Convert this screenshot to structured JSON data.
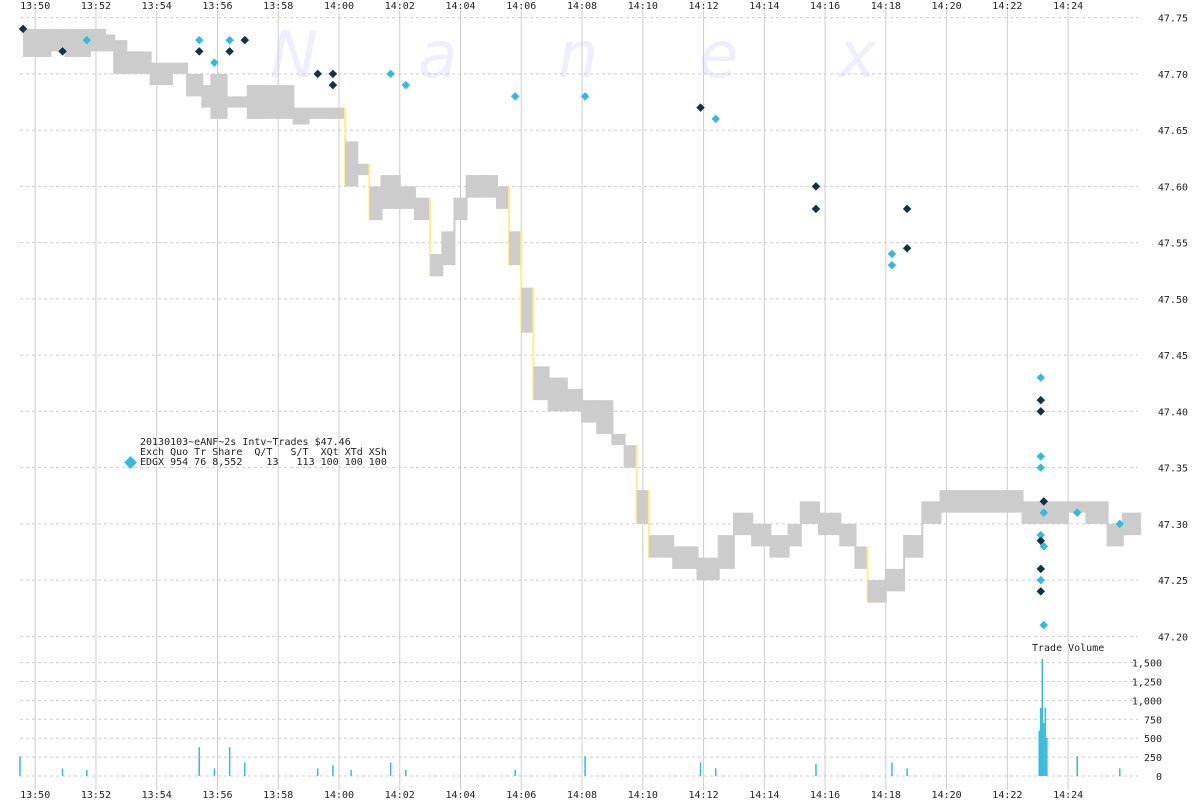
{
  "chart_data": {
    "type": "scatter",
    "title": "20130103~eANF~2s Intv~Trades $47.46",
    "watermark": "N a n e x",
    "legend": {
      "header": "Exch Quo Tr Share  Q/T   S/T  XQt XTd XSh",
      "row": "EDGX 954 76 8,552    13   113 100 100 100",
      "marker_color": "#33bbdd"
    },
    "volume_label": "Trade Volume",
    "x_ticks": [
      "13:50",
      "13:52",
      "13:54",
      "13:56",
      "13:58",
      "14:00",
      "14:02",
      "14:04",
      "14:06",
      "14:08",
      "14:10",
      "14:12",
      "14:14",
      "14:16",
      "14:18",
      "14:20",
      "14:22",
      "14:24"
    ],
    "x_range_minutes": [
      -0.5,
      36.3
    ],
    "price_axis": {
      "ticks": [
        "47.75",
        "47.70",
        "47.65",
        "47.60",
        "47.55",
        "47.50",
        "47.45",
        "47.40",
        "47.35",
        "47.30",
        "47.25",
        "47.20"
      ],
      "range": [
        47.195,
        47.755
      ]
    },
    "volume_axis": {
      "ticks": [
        "1,500",
        "1,250",
        "1,000",
        "750",
        "500",
        "250",
        "0"
      ],
      "range": [
        0,
        1600
      ]
    },
    "colors": {
      "nbbo_band": "#cccccc",
      "edgx_marker": "#33bbdd",
      "other_marker": "#113344",
      "grid": "#cccccc",
      "volume_bar": "#33bbdd",
      "trade_up": "#ffee88",
      "trade_down": "#dd6666"
    },
    "nbbo_series": [
      {
        "t": -0.4,
        "lo": 47.715,
        "hi": 47.74
      },
      {
        "t": 0.5,
        "lo": 47.72,
        "hi": 47.74
      },
      {
        "t": 1.0,
        "lo": 47.715,
        "hi": 47.74
      },
      {
        "t": 1.8,
        "lo": 47.72,
        "hi": 47.74
      },
      {
        "t": 2.3,
        "lo": 47.72,
        "hi": 47.735
      },
      {
        "t": 2.6,
        "lo": 47.7,
        "hi": 47.73
      },
      {
        "t": 3.0,
        "lo": 47.7,
        "hi": 47.72
      },
      {
        "t": 3.8,
        "lo": 47.69,
        "hi": 47.71
      },
      {
        "t": 4.5,
        "lo": 47.7,
        "hi": 47.71
      },
      {
        "t": 5.0,
        "lo": 47.68,
        "hi": 47.7
      },
      {
        "t": 5.5,
        "lo": 47.67,
        "hi": 47.69
      },
      {
        "t": 5.8,
        "lo": 47.66,
        "hi": 47.7
      },
      {
        "t": 6.3,
        "lo": 47.67,
        "hi": 47.68
      },
      {
        "t": 7.0,
        "lo": 47.66,
        "hi": 47.69
      },
      {
        "t": 7.5,
        "lo": 47.66,
        "hi": 47.69
      },
      {
        "t": 8.5,
        "lo": 47.655,
        "hi": 47.67
      },
      {
        "t": 9.0,
        "lo": 47.66,
        "hi": 47.67
      },
      {
        "t": 9.9,
        "lo": 47.66,
        "hi": 47.67
      },
      {
        "t": 10.2,
        "lo": 47.6,
        "hi": 47.64
      },
      {
        "t": 10.6,
        "lo": 47.61,
        "hi": 47.62
      },
      {
        "t": 11.0,
        "lo": 47.57,
        "hi": 47.6
      },
      {
        "t": 11.4,
        "lo": 47.58,
        "hi": 47.61
      },
      {
        "t": 12.0,
        "lo": 47.58,
        "hi": 47.6
      },
      {
        "t": 12.5,
        "lo": 47.57,
        "hi": 47.59
      },
      {
        "t": 13.0,
        "lo": 47.52,
        "hi": 47.54
      },
      {
        "t": 13.4,
        "lo": 47.53,
        "hi": 47.56
      },
      {
        "t": 13.8,
        "lo": 47.57,
        "hi": 47.59
      },
      {
        "t": 14.2,
        "lo": 47.59,
        "hi": 47.61
      },
      {
        "t": 14.8,
        "lo": 47.59,
        "hi": 47.61
      },
      {
        "t": 15.2,
        "lo": 47.58,
        "hi": 47.6
      },
      {
        "t": 15.6,
        "lo": 47.53,
        "hi": 47.56
      },
      {
        "t": 16.0,
        "lo": 47.47,
        "hi": 47.51
      },
      {
        "t": 16.4,
        "lo": 47.41,
        "hi": 47.44
      },
      {
        "t": 16.9,
        "lo": 47.4,
        "hi": 47.43
      },
      {
        "t": 17.5,
        "lo": 47.4,
        "hi": 47.42
      },
      {
        "t": 18.0,
        "lo": 47.39,
        "hi": 47.41
      },
      {
        "t": 18.5,
        "lo": 47.38,
        "hi": 47.41
      },
      {
        "t": 19.0,
        "lo": 47.37,
        "hi": 47.38
      },
      {
        "t": 19.4,
        "lo": 47.35,
        "hi": 47.37
      },
      {
        "t": 19.8,
        "lo": 47.3,
        "hi": 47.33
      },
      {
        "t": 20.2,
        "lo": 47.27,
        "hi": 47.29
      },
      {
        "t": 21.0,
        "lo": 47.26,
        "hi": 47.28
      },
      {
        "t": 21.8,
        "lo": 47.25,
        "hi": 47.27
      },
      {
        "t": 22.5,
        "lo": 47.26,
        "hi": 47.29
      },
      {
        "t": 23.0,
        "lo": 47.29,
        "hi": 47.31
      },
      {
        "t": 23.6,
        "lo": 47.28,
        "hi": 47.3
      },
      {
        "t": 24.2,
        "lo": 47.27,
        "hi": 47.29
      },
      {
        "t": 24.8,
        "lo": 47.28,
        "hi": 47.3
      },
      {
        "t": 25.2,
        "lo": 47.3,
        "hi": 47.32
      },
      {
        "t": 25.8,
        "lo": 47.29,
        "hi": 47.31
      },
      {
        "t": 26.5,
        "lo": 47.28,
        "hi": 47.3
      },
      {
        "t": 27.0,
        "lo": 47.26,
        "hi": 47.28
      },
      {
        "t": 27.4,
        "lo": 47.23,
        "hi": 47.25
      },
      {
        "t": 28.0,
        "lo": 47.24,
        "hi": 47.26
      },
      {
        "t": 28.6,
        "lo": 47.27,
        "hi": 47.29
      },
      {
        "t": 29.2,
        "lo": 47.3,
        "hi": 47.32
      },
      {
        "t": 29.8,
        "lo": 47.31,
        "hi": 47.33
      },
      {
        "t": 30.5,
        "lo": 47.31,
        "hi": 47.33
      },
      {
        "t": 31.5,
        "lo": 47.31,
        "hi": 47.33
      },
      {
        "t": 32.5,
        "lo": 47.3,
        "hi": 47.32
      },
      {
        "t": 33.3,
        "lo": 47.3,
        "hi": 47.32
      },
      {
        "t": 34.0,
        "lo": 47.31,
        "hi": 47.32
      },
      {
        "t": 34.6,
        "lo": 47.3,
        "hi": 47.32
      },
      {
        "t": 35.3,
        "lo": 47.28,
        "hi": 47.3
      },
      {
        "t": 35.8,
        "lo": 47.29,
        "hi": 47.31
      }
    ],
    "trades": [
      {
        "t": -0.4,
        "p": 47.74,
        "exch": "other"
      },
      {
        "t": 0.9,
        "p": 47.72,
        "exch": "other"
      },
      {
        "t": 1.7,
        "p": 47.73,
        "exch": "EDGX"
      },
      {
        "t": 5.4,
        "p": 47.73,
        "exch": "EDGX"
      },
      {
        "t": 5.4,
        "p": 47.72,
        "exch": "other"
      },
      {
        "t": 5.9,
        "p": 47.71,
        "exch": "EDGX"
      },
      {
        "t": 6.4,
        "p": 47.73,
        "exch": "EDGX"
      },
      {
        "t": 6.4,
        "p": 47.72,
        "exch": "other"
      },
      {
        "t": 6.9,
        "p": 47.73,
        "exch": "other"
      },
      {
        "t": 9.3,
        "p": 47.7,
        "exch": "other"
      },
      {
        "t": 9.8,
        "p": 47.7,
        "exch": "other"
      },
      {
        "t": 9.8,
        "p": 47.69,
        "exch": "other"
      },
      {
        "t": 11.7,
        "p": 47.7,
        "exch": "EDGX"
      },
      {
        "t": 12.2,
        "p": 47.69,
        "exch": "EDGX"
      },
      {
        "t": 15.8,
        "p": 47.68,
        "exch": "EDGX"
      },
      {
        "t": 18.1,
        "p": 47.68,
        "exch": "EDGX"
      },
      {
        "t": 21.9,
        "p": 47.67,
        "exch": "other"
      },
      {
        "t": 22.4,
        "p": 47.66,
        "exch": "EDGX"
      },
      {
        "t": 25.7,
        "p": 47.6,
        "exch": "other"
      },
      {
        "t": 25.7,
        "p": 47.58,
        "exch": "other"
      },
      {
        "t": 28.2,
        "p": 47.54,
        "exch": "EDGX"
      },
      {
        "t": 28.2,
        "p": 47.53,
        "exch": "EDGX"
      },
      {
        "t": 28.7,
        "p": 47.545,
        "exch": "other"
      },
      {
        "t": 28.7,
        "p": 47.58,
        "exch": "other"
      },
      {
        "t": 33.1,
        "p": 47.43,
        "exch": "EDGX"
      },
      {
        "t": 33.1,
        "p": 47.41,
        "exch": "other"
      },
      {
        "t": 33.1,
        "p": 47.4,
        "exch": "other"
      },
      {
        "t": 33.1,
        "p": 47.36,
        "exch": "EDGX"
      },
      {
        "t": 33.1,
        "p": 47.35,
        "exch": "EDGX"
      },
      {
        "t": 33.2,
        "p": 47.32,
        "exch": "other"
      },
      {
        "t": 33.2,
        "p": 47.31,
        "exch": "EDGX"
      },
      {
        "t": 33.1,
        "p": 47.29,
        "exch": "EDGX"
      },
      {
        "t": 33.1,
        "p": 47.285,
        "exch": "other"
      },
      {
        "t": 33.2,
        "p": 47.28,
        "exch": "EDGX"
      },
      {
        "t": 33.1,
        "p": 47.26,
        "exch": "other"
      },
      {
        "t": 33.1,
        "p": 47.25,
        "exch": "EDGX"
      },
      {
        "t": 33.1,
        "p": 47.24,
        "exch": "other"
      },
      {
        "t": 33.2,
        "p": 47.21,
        "exch": "EDGX"
      },
      {
        "t": 34.3,
        "p": 47.31,
        "exch": "EDGX"
      },
      {
        "t": 35.7,
        "p": 47.3,
        "exch": "EDGX"
      }
    ],
    "volume": [
      {
        "t": -0.5,
        "v": 260
      },
      {
        "t": 0.9,
        "v": 100
      },
      {
        "t": 1.7,
        "v": 80
      },
      {
        "t": 5.4,
        "v": 380
      },
      {
        "t": 5.9,
        "v": 100
      },
      {
        "t": 6.4,
        "v": 380
      },
      {
        "t": 6.9,
        "v": 180
      },
      {
        "t": 9.3,
        "v": 100
      },
      {
        "t": 9.8,
        "v": 140
      },
      {
        "t": 10.4,
        "v": 80
      },
      {
        "t": 11.7,
        "v": 180
      },
      {
        "t": 12.2,
        "v": 80
      },
      {
        "t": 15.8,
        "v": 80
      },
      {
        "t": 18.1,
        "v": 260
      },
      {
        "t": 21.9,
        "v": 180
      },
      {
        "t": 22.4,
        "v": 100
      },
      {
        "t": 25.7,
        "v": 160
      },
      {
        "t": 28.2,
        "v": 180
      },
      {
        "t": 28.7,
        "v": 100
      },
      {
        "t": 33.05,
        "v": 600
      },
      {
        "t": 33.1,
        "v": 900
      },
      {
        "t": 33.15,
        "v": 1550
      },
      {
        "t": 33.2,
        "v": 700
      },
      {
        "t": 33.25,
        "v": 900
      },
      {
        "t": 33.3,
        "v": 500
      },
      {
        "t": 34.3,
        "v": 260
      },
      {
        "t": 35.7,
        "v": 100
      }
    ]
  }
}
